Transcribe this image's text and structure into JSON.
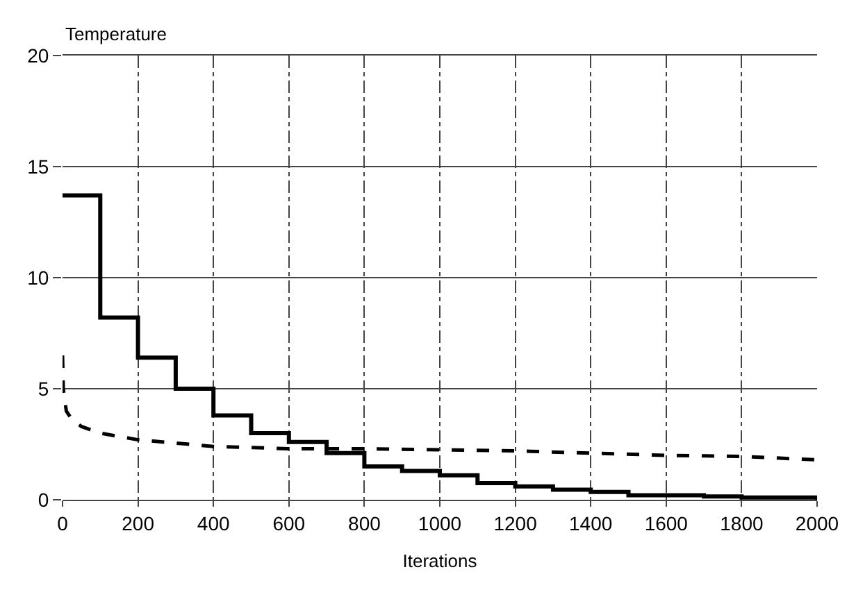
{
  "chart_data": {
    "type": "line",
    "xlabel": "Iterations",
    "ylabel": "Temperature",
    "xlim": [
      0,
      2000
    ],
    "ylim": [
      0,
      20
    ],
    "xticks": [
      0,
      200,
      400,
      600,
      800,
      1000,
      1200,
      1400,
      1600,
      1800,
      2000
    ],
    "yticks": [
      0,
      5,
      10,
      15,
      20
    ],
    "grid": true,
    "legend": false,
    "series": [
      {
        "type": "step",
        "color": "#000000",
        "line_style": "solid",
        "x": [
          0,
          100,
          200,
          300,
          400,
          500,
          600,
          700,
          800,
          900,
          1000,
          1100,
          1200,
          1300,
          1400,
          1500,
          1600,
          1700,
          1800,
          1900,
          2000
        ],
        "values": [
          13.7,
          8.2,
          6.4,
          5.0,
          3.8,
          3.0,
          2.6,
          2.1,
          1.5,
          1.3,
          1.1,
          0.75,
          0.6,
          0.45,
          0.35,
          0.2,
          0.2,
          0.15,
          0.1,
          0.1,
          0
        ]
      },
      {
        "color": "#000000",
        "line_style": "dashed",
        "x": [
          0,
          2,
          10,
          25,
          50,
          100,
          200,
          300,
          400,
          600,
          800,
          1000,
          1200,
          1400,
          1600,
          1800,
          2000
        ],
        "values": [
          6.5,
          5.0,
          4.0,
          3.6,
          3.3,
          3.0,
          2.7,
          2.55,
          2.4,
          2.3,
          2.3,
          2.25,
          2.2,
          2.1,
          2.0,
          1.95,
          1.8
        ]
      }
    ]
  }
}
